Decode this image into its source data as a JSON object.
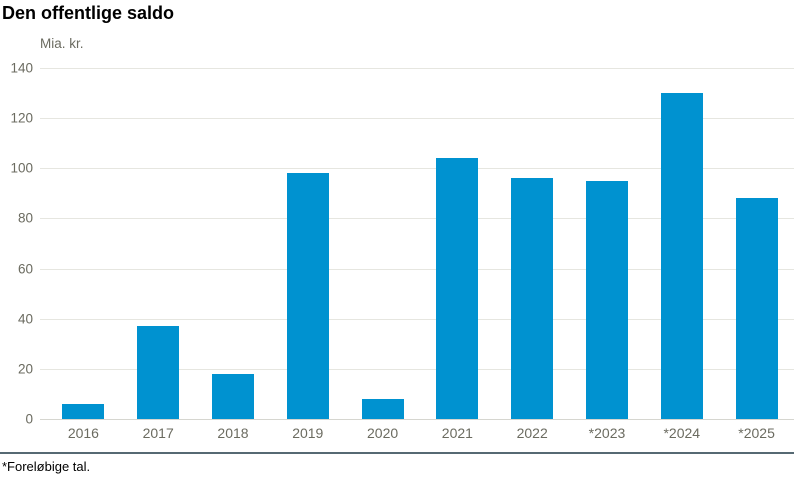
{
  "chart_data": {
    "type": "bar",
    "title": "Den offentlige saldo",
    "ylabel": "Mia. kr.",
    "xlabel": "",
    "categories": [
      "2016",
      "2017",
      "2018",
      "2019",
      "2020",
      "2021",
      "2022",
      "*2023",
      "*2024",
      "*2025"
    ],
    "values": [
      6,
      37,
      18,
      98,
      8,
      104,
      96,
      95,
      130,
      88
    ],
    "ylim": [
      0,
      140
    ],
    "yticks": [
      0,
      20,
      40,
      60,
      80,
      100,
      120,
      140
    ],
    "grid": true,
    "legend_position": "none",
    "footnote": "*Foreløbige tal.",
    "colors": {
      "bar": "#0092d0",
      "gridline": "#e6e6e0",
      "baseline": "#d6d6d0",
      "axis_text": "#6b6b60",
      "title_text": "#000000",
      "separator": "#566973"
    }
  }
}
